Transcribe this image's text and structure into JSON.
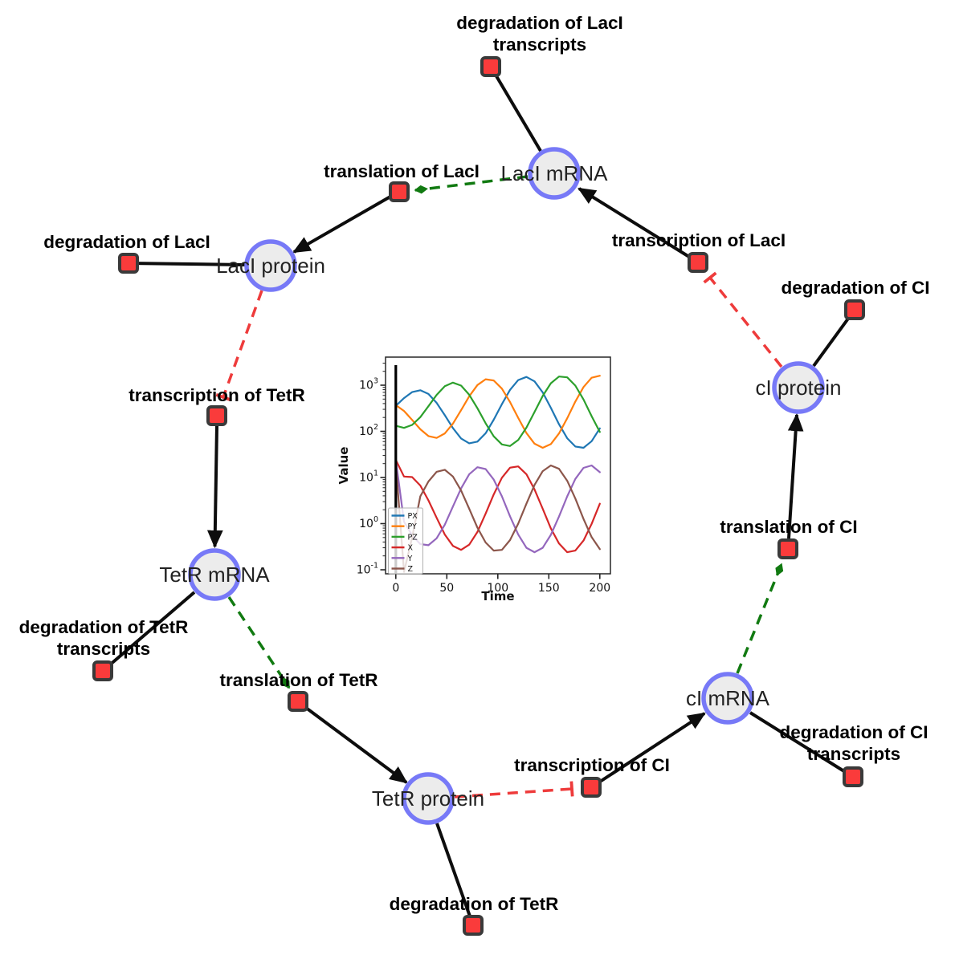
{
  "colors": {
    "species_fill": "#ececec",
    "species_border": "#7779f7",
    "reaction_fill": "#fa3b3b",
    "reaction_border": "#3a3a3a",
    "edge_black": "#0d0d0d",
    "edge_modifier_green": "#117a11",
    "edge_inhibition_red": "#ee3b3b",
    "background": "#ffffff"
  },
  "network": {
    "species": [
      {
        "id": "laci-mrna",
        "label": "LacI mRNA"
      },
      {
        "id": "laci-protein",
        "label": "LacI protein"
      },
      {
        "id": "tetr-mrna",
        "label": "TetR mRNA"
      },
      {
        "id": "tetr-protein",
        "label": "TetR protein"
      },
      {
        "id": "ci-mrna",
        "label": "cI mRNA"
      },
      {
        "id": "ci-protein",
        "label": "cI protein"
      }
    ],
    "reactions": [
      {
        "id": "degradation-laci-transcripts",
        "lines": [
          "degradation of LacI",
          "transcripts"
        ]
      },
      {
        "id": "translation-laci",
        "lines": [
          "translation of LacI"
        ]
      },
      {
        "id": "transcription-laci",
        "lines": [
          "transcription of LacI"
        ]
      },
      {
        "id": "degradation-ci",
        "lines": [
          "degradation of CI"
        ]
      },
      {
        "id": "translation-ci",
        "lines": [
          "translation of CI"
        ]
      },
      {
        "id": "degradation-ci-transcripts",
        "lines": [
          "degradation of CI",
          "transcripts"
        ]
      },
      {
        "id": "transcription-ci",
        "lines": [
          "transcription of CI"
        ]
      },
      {
        "id": "degradation-tetr",
        "lines": [
          "degradation of TetR"
        ]
      },
      {
        "id": "translation-tetr",
        "lines": [
          "translation of TetR"
        ]
      },
      {
        "id": "degradation-tetr-transcripts",
        "lines": [
          "degradation of TetR",
          "transcripts"
        ]
      },
      {
        "id": "transcription-tetr",
        "lines": [
          "transcription of TetR"
        ]
      },
      {
        "id": "degradation-laci",
        "lines": [
          "degradation of LacI"
        ]
      }
    ],
    "edges": [
      {
        "from": "LacI mRNA",
        "to": "degradation of LacI transcripts",
        "type": "reactant"
      },
      {
        "from": "LacI mRNA",
        "to": "translation of LacI",
        "type": "modifier"
      },
      {
        "from": "transcription of LacI",
        "to": "LacI mRNA",
        "type": "product"
      },
      {
        "from": "cI protein",
        "to": "transcription of LacI",
        "type": "inhibition"
      },
      {
        "from": "cI protein",
        "to": "degradation of CI",
        "type": "reactant"
      },
      {
        "from": "translation of CI",
        "to": "cI protein",
        "type": "product"
      },
      {
        "from": "cI mRNA",
        "to": "translation of CI",
        "type": "modifier"
      },
      {
        "from": "transcription of CI",
        "to": "cI mRNA",
        "type": "product"
      },
      {
        "from": "cI mRNA",
        "to": "degradation of CI transcripts",
        "type": "reactant"
      },
      {
        "from": "TetR protein",
        "to": "transcription of CI",
        "type": "inhibition"
      },
      {
        "from": "translation of TetR",
        "to": "TetR protein",
        "type": "product"
      },
      {
        "from": "TetR protein",
        "to": "degradation of TetR",
        "type": "reactant"
      },
      {
        "from": "TetR mRNA",
        "to": "translation of TetR",
        "type": "modifier"
      },
      {
        "from": "transcription of TetR",
        "to": "TetR mRNA",
        "type": "product"
      },
      {
        "from": "TetR mRNA",
        "to": "degradation of TetR transcripts",
        "type": "reactant"
      },
      {
        "from": "LacI protein",
        "to": "transcription of TetR",
        "type": "inhibition"
      },
      {
        "from": "translation of LacI",
        "to": "LacI protein",
        "type": "product"
      },
      {
        "from": "LacI protein",
        "to": "degradation of LacI",
        "type": "reactant"
      }
    ]
  },
  "chart_data": {
    "type": "line",
    "title": "",
    "xlabel": "Time",
    "ylabel": "Value",
    "x_scale": "linear",
    "y_scale": "log",
    "xticks": [
      0,
      50,
      100,
      150,
      200
    ],
    "ytick_exponents": [
      -1,
      0,
      1,
      2,
      3
    ],
    "xlim": [
      -10,
      210
    ],
    "ylim": [
      0.076,
      4100
    ],
    "grid": false,
    "legend_position": "lower left",
    "annotations": [
      {
        "type": "vline",
        "x": 0,
        "color": "#000000"
      }
    ],
    "x": [
      0,
      8,
      16,
      24,
      32,
      40,
      48,
      56,
      64,
      72,
      80,
      88,
      96,
      104,
      112,
      120,
      128,
      136,
      144,
      152,
      160,
      168,
      176,
      184,
      192,
      200
    ],
    "series": [
      {
        "name": "PX",
        "color": "#1f77b4",
        "values": [
          358,
          525,
          708,
          777,
          646,
          415,
          224,
          118,
          70,
          55,
          60,
          91,
          179,
          389,
          794,
          1294,
          1510,
          1213,
          698,
          324,
          142,
          71,
          47,
          44,
          61,
          116
        ]
      },
      {
        "name": "PY",
        "color": "#ff7f0e",
        "values": [
          371,
          277,
          177,
          111,
          79,
          72,
          90,
          147,
          288,
          576,
          1010,
          1346,
          1265,
          843,
          431,
          195,
          92,
          54,
          44,
          53,
          90,
          192,
          442,
          912,
          1452,
          1603
        ]
      },
      {
        "name": "PZ",
        "color": "#2ca02c",
        "values": [
          132,
          119,
          138,
          203,
          350,
          617,
          950,
          1138,
          982,
          622,
          317,
          150,
          78,
          52,
          48,
          65,
          120,
          263,
          585,
          1102,
          1542,
          1479,
          980,
          490,
          213,
          97
        ]
      },
      {
        "name": "X",
        "color": "#d62728",
        "values": [
          24,
          10.5,
          10.2,
          6.7,
          3.2,
          1.34,
          0.58,
          0.33,
          0.27,
          0.35,
          0.66,
          1.64,
          4.3,
          9.9,
          16.3,
          17.4,
          11.8,
          5.5,
          2.1,
          0.79,
          0.37,
          0.24,
          0.26,
          0.43,
          0.99,
          2.7
        ]
      },
      {
        "name": "Y",
        "color": "#9467bd",
        "values": [
          24,
          1.1,
          0.56,
          0.36,
          0.34,
          0.48,
          0.95,
          2.35,
          5.8,
          11.8,
          16.7,
          15.2,
          9.0,
          3.9,
          1.44,
          0.58,
          0.3,
          0.24,
          0.3,
          0.57,
          1.43,
          3.9,
          9.3,
          16.2,
          18.2,
          13.0
        ]
      },
      {
        "name": "Z",
        "color": "#8c564b",
        "values": [
          20,
          0.09,
          0.5,
          3.9,
          8.2,
          13.3,
          14.7,
          10.5,
          5.2,
          2.1,
          0.82,
          0.39,
          0.26,
          0.27,
          0.44,
          1.0,
          2.7,
          6.9,
          13.7,
          18.2,
          15.4,
          8.5,
          3.5,
          1.26,
          0.51,
          0.28
        ]
      }
    ]
  }
}
